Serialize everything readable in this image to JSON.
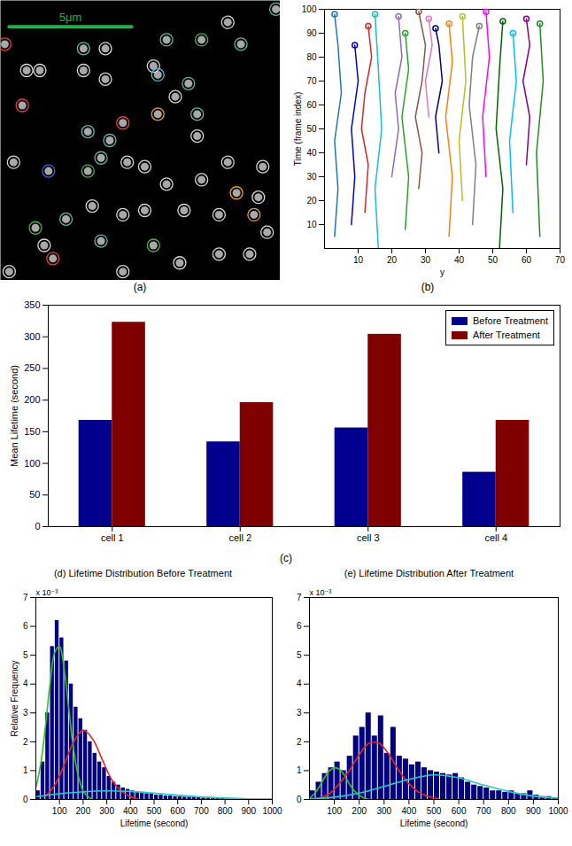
{
  "chart_data": [
    {
      "type": "scatter",
      "caption": "(a)",
      "tick_labels": false,
      "xlim": [
        0,
        64
      ],
      "ylim": [
        0,
        64
      ],
      "x": [
        1,
        19,
        24,
        38,
        46,
        52,
        63,
        55,
        35,
        36,
        24,
        19,
        6,
        9,
        43,
        5,
        40,
        28,
        36,
        45,
        45,
        20,
        25,
        23,
        29,
        33,
        38,
        20,
        11,
        3,
        46,
        52,
        60,
        54,
        58,
        59,
        50,
        42,
        21,
        15,
        28,
        33,
        10,
        12,
        23,
        28,
        41,
        50,
        57,
        61,
        2,
        35,
        8
      ],
      "y": [
        10,
        11,
        11,
        9,
        9,
        5,
        2,
        10,
        15,
        17,
        18,
        16,
        16,
        16,
        19,
        24,
        22,
        28,
        26,
        26,
        31,
        30,
        32,
        36,
        37,
        38,
        42,
        39,
        39,
        37,
        41,
        37,
        38,
        44,
        49,
        45,
        49,
        48,
        47,
        50,
        49,
        48,
        56,
        59,
        55,
        62,
        60,
        58,
        58,
        53,
        62,
        56,
        52
      ],
      "colors": [
        "#e04040",
        "#5fb8a8",
        "#d8d8d8",
        "#5fb8a8",
        "#4caf50",
        "#d8d8d8",
        "#5fb8a8",
        "#5fb8a8",
        "#d8d8d8",
        "#40c8e0",
        "#d8d8d8",
        "#d8d8d8",
        "#d8d8d8",
        "#d8d8d8",
        "#5fb8a8",
        "#e04040",
        "#d8d8d8",
        "#e04040",
        "#e8a030",
        "#5fb8a8",
        "#d8d8d8",
        "#5fb8a8",
        "#5fb8a8",
        "#5fb8a8",
        "#d8d8d8",
        "#d8d8d8",
        "#d8d8d8",
        "#4caf50",
        "#4060e0",
        "#d8d8d8",
        "#d8d8d8",
        "#d8d8d8",
        "#d8d8d8",
        "#e8a030",
        "#e8a030",
        "#d8d8d8",
        "#d8d8d8",
        "#d8d8d8",
        "#d8d8d8",
        "#5fb8a8",
        "#d8d8d8",
        "#d8d8d8",
        "#d8d8d8",
        "#e04040",
        "#5fb8a8",
        "#d8d8d8",
        "#d8d8d8",
        "#d8d8d8",
        "#d8d8d8",
        "#d8d8d8",
        "#d8d8d8",
        "#4caf50",
        "#4caf50"
      ],
      "scale_bar": {
        "label": "5μm",
        "x": [
          2,
          30
        ],
        "y": 6
      }
    },
    {
      "type": "line",
      "caption": "(b)",
      "x_label": "y",
      "y_label": "Time (frame index)",
      "marker": "circle",
      "xlim": [
        0,
        70
      ],
      "xticks": [
        10,
        20,
        30,
        40,
        50,
        60,
        70
      ],
      "ylim": [
        0,
        100
      ],
      "yticks": [
        10,
        20,
        30,
        40,
        50,
        60,
        70,
        80,
        90,
        100
      ],
      "series": [
        {
          "color": "#1f77b4",
          "x": [
            3,
            4,
            3,
            5,
            4,
            3
          ],
          "values": [
            5,
            25,
            45,
            65,
            85,
            98
          ]
        },
        {
          "color": "#0000cc",
          "x": [
            8,
            9,
            8,
            10,
            9
          ],
          "values": [
            10,
            30,
            50,
            70,
            85
          ]
        },
        {
          "color": "#d62728",
          "x": [
            12,
            13,
            11,
            12,
            14,
            13
          ],
          "values": [
            15,
            35,
            50,
            65,
            80,
            93
          ]
        },
        {
          "color": "#17becf",
          "x": [
            16,
            15,
            17,
            16,
            15
          ],
          "values": [
            0,
            25,
            50,
            75,
            98
          ]
        },
        {
          "color": "#9467bd",
          "x": [
            20,
            22,
            21,
            23,
            22
          ],
          "values": [
            30,
            50,
            65,
            80,
            97
          ]
        },
        {
          "color": "#2ca02c",
          "x": [
            24,
            25,
            23,
            25,
            24
          ],
          "values": [
            8,
            30,
            55,
            75,
            90
          ]
        },
        {
          "color": "#8c564b",
          "x": [
            28,
            29,
            27,
            29,
            30,
            28
          ],
          "values": [
            25,
            40,
            55,
            70,
            85,
            99
          ]
        },
        {
          "color": "#e377c2",
          "x": [
            31,
            30,
            32,
            31
          ],
          "values": [
            55,
            70,
            85,
            96
          ]
        },
        {
          "color": "#000080",
          "x": [
            34,
            33,
            35,
            34,
            33
          ],
          "values": [
            40,
            55,
            70,
            85,
            92
          ]
        },
        {
          "color": "#ff7f0e",
          "x": [
            37,
            38,
            36,
            38,
            37
          ],
          "values": [
            5,
            30,
            55,
            78,
            94
          ]
        },
        {
          "color": "#bcbd22",
          "x": [
            41,
            40,
            42,
            41
          ],
          "values": [
            20,
            45,
            70,
            97
          ]
        },
        {
          "color": "#7f7f7f",
          "x": [
            44,
            45,
            43,
            44,
            46
          ],
          "values": [
            10,
            35,
            60,
            80,
            93
          ]
        },
        {
          "color": "#ff00ff",
          "x": [
            48,
            47,
            49,
            48
          ],
          "values": [
            30,
            55,
            80,
            99
          ]
        },
        {
          "color": "#006400",
          "x": [
            52,
            53,
            51,
            52,
            53
          ],
          "values": [
            0,
            25,
            50,
            75,
            95
          ]
        },
        {
          "color": "#00bfff",
          "x": [
            56,
            55,
            57,
            56
          ],
          "values": [
            15,
            45,
            70,
            90
          ]
        },
        {
          "color": "#8b008b",
          "x": [
            60,
            61,
            59,
            61,
            60
          ],
          "values": [
            35,
            55,
            70,
            85,
            96
          ]
        },
        {
          "color": "#228b22",
          "x": [
            64,
            63,
            65,
            64
          ],
          "values": [
            5,
            40,
            70,
            94
          ]
        }
      ]
    },
    {
      "type": "bar",
      "caption": "(c)",
      "y_label": "Mean Lifetime (second)",
      "legend": "top-right",
      "categories": [
        "cell 1",
        "cell 2",
        "cell 3",
        "cell 4"
      ],
      "ylim": [
        0,
        350
      ],
      "yticks": [
        0,
        50,
        100,
        150,
        200,
        250,
        300,
        350
      ],
      "series": [
        {
          "name": "Before Treatment",
          "color": "#00008f",
          "values": [
            168,
            134,
            156,
            86
          ]
        },
        {
          "name": "After Treatment",
          "color": "#800000",
          "values": [
            323,
            196,
            304,
            168
          ]
        }
      ]
    },
    {
      "type": "histogram",
      "title": "(d) Lifetime Distribution Before Treatment",
      "x_label": "Lifetime (second)",
      "y_label": "Relative Frequency",
      "y_multiplier": "x 10⁻³",
      "color": "#000080",
      "xlim": [
        0,
        1000
      ],
      "xticks": [
        100,
        200,
        300,
        400,
        500,
        600,
        700,
        800,
        900,
        1000
      ],
      "ylim": [
        0,
        7
      ],
      "yticks": [
        0,
        1,
        2,
        3,
        4,
        5,
        6,
        7
      ],
      "bins": [
        0,
        20,
        40,
        60,
        80,
        100,
        120,
        140,
        160,
        180,
        200,
        220,
        240,
        260,
        280,
        300,
        320,
        340,
        360,
        380,
        400,
        420,
        440,
        460,
        480,
        500,
        520,
        540,
        560,
        580,
        600,
        620,
        640,
        660,
        680,
        700,
        720,
        740,
        760,
        780,
        800,
        820,
        840,
        860,
        880,
        900,
        920,
        940,
        960,
        980,
        1000
      ],
      "counts": [
        0.3,
        1.3,
        3.0,
        5.3,
        6.2,
        5.6,
        4.8,
        4.0,
        3.2,
        2.8,
        2.4,
        2.0,
        1.6,
        1.3,
        1.1,
        0.8,
        0.6,
        0.5,
        0.4,
        0.35,
        0.3,
        0.25,
        0.25,
        0.2,
        0.2,
        0.15,
        0.15,
        0.12,
        0.12,
        0.1,
        0.1,
        0.08,
        0.08,
        0.1,
        0.06,
        0.05,
        0.05,
        0.04,
        0.04,
        0.03,
        0.03,
        0.02,
        0.02,
        0.02,
        0.01,
        0.01,
        0.01,
        0.01,
        0.01,
        0.01
      ],
      "fits": [
        {
          "color": "#22cc22",
          "x": [
            0,
            20,
            40,
            60,
            80,
            100,
            120,
            140,
            160,
            180,
            200,
            220,
            240
          ],
          "values": [
            0.4,
            1.2,
            2.5,
            4.0,
            5.1,
            5.3,
            4.5,
            3.1,
            1.7,
            0.8,
            0.3,
            0.1,
            0
          ]
        },
        {
          "color": "#ee2222",
          "x": [
            40,
            80,
            120,
            160,
            200,
            240,
            280,
            320,
            360,
            400,
            440
          ],
          "values": [
            0.1,
            0.5,
            1.2,
            2.0,
            2.4,
            2.1,
            1.4,
            0.7,
            0.3,
            0.1,
            0
          ]
        },
        {
          "color": "#22cccc",
          "x": [
            0,
            100,
            200,
            300,
            400,
            500,
            600,
            700,
            800,
            900,
            1000
          ],
          "values": [
            0.1,
            0.2,
            0.27,
            0.3,
            0.28,
            0.22,
            0.15,
            0.09,
            0.05,
            0.02,
            0.01
          ]
        }
      ]
    },
    {
      "type": "histogram",
      "title": "(e) Lifetime Distribution After Treatment",
      "x_label": "Lifetime (second)",
      "y_multiplier": "x 10⁻³",
      "color": "#000080",
      "xlim": [
        0,
        1000
      ],
      "xticks": [
        100,
        200,
        300,
        400,
        500,
        600,
        700,
        800,
        900,
        1000
      ],
      "ylim": [
        0,
        7
      ],
      "yticks": [
        0,
        1,
        2,
        3,
        4,
        5,
        6,
        7
      ],
      "bins": [
        0,
        25,
        50,
        75,
        100,
        125,
        150,
        175,
        200,
        225,
        250,
        275,
        300,
        325,
        350,
        375,
        400,
        425,
        450,
        475,
        500,
        525,
        550,
        575,
        600,
        625,
        650,
        675,
        700,
        725,
        750,
        775,
        800,
        825,
        850,
        875,
        900,
        925,
        950,
        975,
        1000
      ],
      "counts": [
        0.3,
        0.6,
        0.9,
        1.1,
        1.3,
        1.0,
        1.5,
        2.2,
        2.5,
        3.0,
        2.2,
        2.9,
        1.6,
        2.5,
        1.5,
        1.4,
        1.2,
        1.3,
        1.1,
        1.0,
        0.95,
        0.9,
        0.85,
        0.9,
        0.75,
        0.6,
        0.5,
        0.45,
        0.4,
        0.3,
        0.3,
        0.25,
        0.3,
        0.2,
        0.2,
        0.3,
        0.15,
        0.1,
        0.1,
        0.05
      ],
      "fits": [
        {
          "color": "#22cc22",
          "x": [
            0,
            20,
            40,
            60,
            80,
            100,
            120,
            140,
            160,
            180,
            200,
            220,
            240
          ],
          "values": [
            0.05,
            0.2,
            0.45,
            0.75,
            1.0,
            1.1,
            1.05,
            0.85,
            0.55,
            0.3,
            0.15,
            0.05,
            0
          ]
        },
        {
          "color": "#ee2222",
          "x": [
            40,
            80,
            120,
            160,
            200,
            240,
            280,
            320,
            360,
            400,
            440,
            480,
            520
          ],
          "values": [
            0.05,
            0.2,
            0.55,
            1.0,
            1.55,
            1.95,
            1.95,
            1.55,
            1.0,
            0.55,
            0.25,
            0.1,
            0.03
          ]
        },
        {
          "color": "#22cccc",
          "x": [
            0,
            100,
            200,
            300,
            400,
            500,
            600,
            700,
            800,
            900,
            1000
          ],
          "values": [
            0.02,
            0.08,
            0.22,
            0.45,
            0.7,
            0.85,
            0.75,
            0.5,
            0.28,
            0.12,
            0.05
          ]
        }
      ]
    }
  ]
}
